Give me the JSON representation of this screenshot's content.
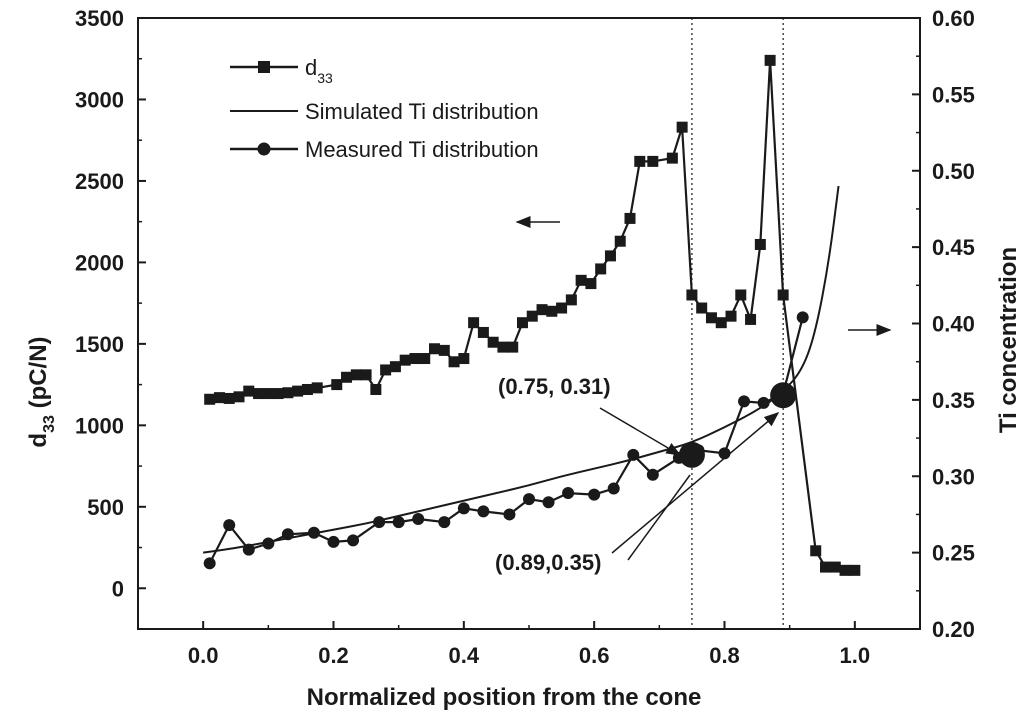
{
  "chart_data": {
    "type": "line",
    "title": "",
    "xlabel": "Normalized position from the cone",
    "ylabel_left": {
      "main": "d",
      "sub": "33",
      "unit": "  (pC/N)"
    },
    "ylabel_right": "Ti concentration",
    "xlim": [
      -0.1,
      1.1
    ],
    "ylim_left": [
      -250,
      3500
    ],
    "ylim_right": [
      0.2,
      0.6
    ],
    "x_ticks": [
      "0.0",
      "0.2",
      "0.4",
      "0.6",
      "0.8",
      "1.0"
    ],
    "x_tick_values": [
      0.0,
      0.2,
      0.4,
      0.6,
      0.8,
      1.0
    ],
    "y_left_ticks": [
      "0",
      "500",
      "1000",
      "1500",
      "2000",
      "2500",
      "3000",
      "3500"
    ],
    "y_left_tick_values": [
      0,
      500,
      1000,
      1500,
      2000,
      2500,
      3000,
      3500
    ],
    "y_right_ticks": [
      "0.20",
      "0.25",
      "0.30",
      "0.35",
      "0.40",
      "0.45",
      "0.50",
      "0.55",
      "0.60"
    ],
    "y_right_tick_values": [
      0.2,
      0.25,
      0.3,
      0.35,
      0.4,
      0.45,
      0.5,
      0.55,
      0.6
    ],
    "legend": [
      {
        "main": "d",
        "sub": "33",
        "marker": "square"
      },
      {
        "main": "Simulated Ti distribution",
        "sub": "",
        "marker": "none"
      },
      {
        "main": "Measured Ti distribution",
        "sub": "",
        "marker": "circle"
      }
    ],
    "series": [
      {
        "name": "d33",
        "axis": "left",
        "marker": "square",
        "x": [
          0.01,
          0.025,
          0.04,
          0.055,
          0.07,
          0.085,
          0.1,
          0.115,
          0.13,
          0.145,
          0.16,
          0.175,
          0.205,
          0.22,
          0.235,
          0.25,
          0.265,
          0.28,
          0.295,
          0.31,
          0.325,
          0.34,
          0.355,
          0.37,
          0.385,
          0.4,
          0.415,
          0.43,
          0.445,
          0.46,
          0.475,
          0.49,
          0.505,
          0.52,
          0.535,
          0.55,
          0.565,
          0.58,
          0.595,
          0.61,
          0.625,
          0.64,
          0.655,
          0.67,
          0.69,
          0.72,
          0.735,
          0.75,
          0.765,
          0.78,
          0.795,
          0.81,
          0.825,
          0.84,
          0.855,
          0.87,
          0.89,
          0.94,
          0.955,
          0.97,
          0.985,
          1.0
        ],
        "y": [
          1160,
          1170,
          1165,
          1175,
          1210,
          1195,
          1195,
          1195,
          1200,
          1210,
          1220,
          1230,
          1250,
          1295,
          1310,
          1310,
          1220,
          1340,
          1360,
          1400,
          1410,
          1410,
          1470,
          1460,
          1390,
          1410,
          1630,
          1570,
          1510,
          1480,
          1480,
          1630,
          1670,
          1710,
          1700,
          1720,
          1770,
          1890,
          1870,
          1960,
          2040,
          2130,
          2270,
          2620,
          2620,
          2640,
          2830,
          1800,
          1720,
          1660,
          1630,
          1670,
          1800,
          1650,
          2110,
          3240,
          1800,
          230,
          130,
          130,
          110,
          110
        ]
      },
      {
        "name": "Simulated Ti distribution",
        "axis": "right",
        "marker": "none",
        "x": [
          0.0,
          0.05,
          0.1,
          0.15,
          0.2,
          0.25,
          0.3,
          0.35,
          0.4,
          0.45,
          0.5,
          0.55,
          0.6,
          0.65,
          0.7,
          0.75,
          0.8,
          0.85,
          0.89,
          0.92,
          0.94,
          0.96,
          0.975
        ],
        "y": [
          0.25,
          0.253,
          0.257,
          0.261,
          0.265,
          0.269,
          0.274,
          0.279,
          0.284,
          0.289,
          0.294,
          0.3,
          0.305,
          0.31,
          0.316,
          0.322,
          0.332,
          0.343,
          0.355,
          0.37,
          0.395,
          0.44,
          0.49
        ]
      },
      {
        "name": "Measured Ti distribution",
        "axis": "right",
        "marker": "circle",
        "x": [
          0.01,
          0.04,
          0.07,
          0.1,
          0.13,
          0.17,
          0.2,
          0.23,
          0.27,
          0.3,
          0.33,
          0.37,
          0.4,
          0.43,
          0.47,
          0.5,
          0.53,
          0.56,
          0.6,
          0.63,
          0.66,
          0.69,
          0.73,
          0.76,
          0.8,
          0.83,
          0.86,
          0.89,
          0.92
        ],
        "y": [
          0.243,
          0.268,
          0.252,
          0.256,
          0.262,
          0.263,
          0.257,
          0.258,
          0.27,
          0.27,
          0.272,
          0.27,
          0.279,
          0.277,
          0.275,
          0.285,
          0.283,
          0.289,
          0.288,
          0.292,
          0.314,
          0.301,
          0.312,
          0.317,
          0.315,
          0.349,
          0.348,
          0.354,
          0.404
        ]
      }
    ],
    "reference_lines": [
      {
        "x": 0.75,
        "style": "dotted"
      },
      {
        "x": 0.89,
        "style": "dotted"
      }
    ],
    "highlight_points": [
      {
        "x": 0.75,
        "y": 0.31,
        "label": "(0.75, 0.31)"
      },
      {
        "x": 0.89,
        "y": 0.35,
        "label": "(0.89,0.35)"
      }
    ],
    "arrows": [
      {
        "direction": "left",
        "points_to": "left axis"
      },
      {
        "direction": "right",
        "points_to": "right axis"
      }
    ]
  }
}
